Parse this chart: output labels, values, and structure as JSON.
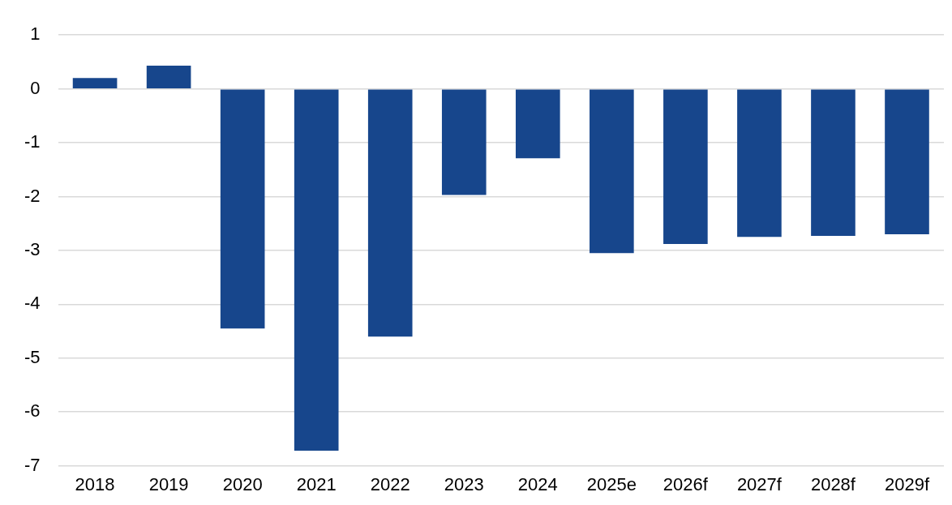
{
  "chart_data": {
    "type": "bar",
    "categories": [
      "2018",
      "2019",
      "2020",
      "2021",
      "2022",
      "2023",
      "2024",
      "2025e",
      "2026f",
      "2027f",
      "2028f",
      "2029f"
    ],
    "values": [
      0.2,
      0.43,
      -4.45,
      -6.72,
      -4.6,
      -1.97,
      -1.29,
      -3.05,
      -2.88,
      -2.75,
      -2.73,
      -2.7
    ],
    "color": "#17468c",
    "ylim": [
      -7,
      1
    ],
    "yticks": [
      -7,
      -6,
      -5,
      -4,
      -3,
      -2,
      -1,
      0,
      1
    ],
    "grid": "y"
  }
}
